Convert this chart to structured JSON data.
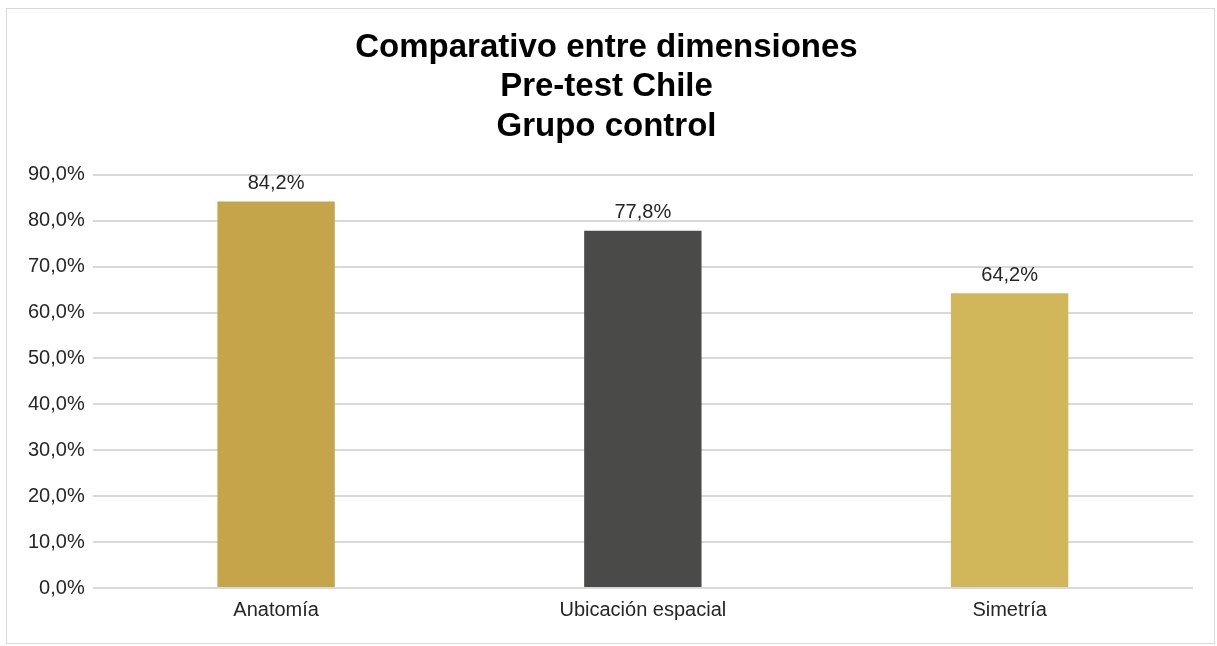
{
  "chart_data": {
    "type": "bar",
    "title": "Comparativo entre dimensiones\nPre-test Chile\nGrupo control",
    "categories": [
      "Anatomía",
      "Ubicación espacial",
      "Simetría"
    ],
    "values": [
      84.2,
      77.8,
      64.2
    ],
    "colors": [
      "#c4a54a",
      "#4a4a48",
      "#d1b75a"
    ],
    "value_labels": [
      "84,2%",
      "77,8%",
      "64,2%"
    ],
    "ylim": [
      0,
      90
    ],
    "yticks": [
      {
        "value": 0,
        "label": "0,0%"
      },
      {
        "value": 10,
        "label": "10,0%"
      },
      {
        "value": 20,
        "label": "20,0%"
      },
      {
        "value": 30,
        "label": "30,0%"
      },
      {
        "value": 40,
        "label": "40,0%"
      },
      {
        "value": 50,
        "label": "50,0%"
      },
      {
        "value": 60,
        "label": "60,0%"
      },
      {
        "value": 70,
        "label": "70,0%"
      },
      {
        "value": 80,
        "label": "80,0%"
      },
      {
        "value": 90,
        "label": "90,0%"
      }
    ],
    "grid": "y",
    "legend": false
  }
}
